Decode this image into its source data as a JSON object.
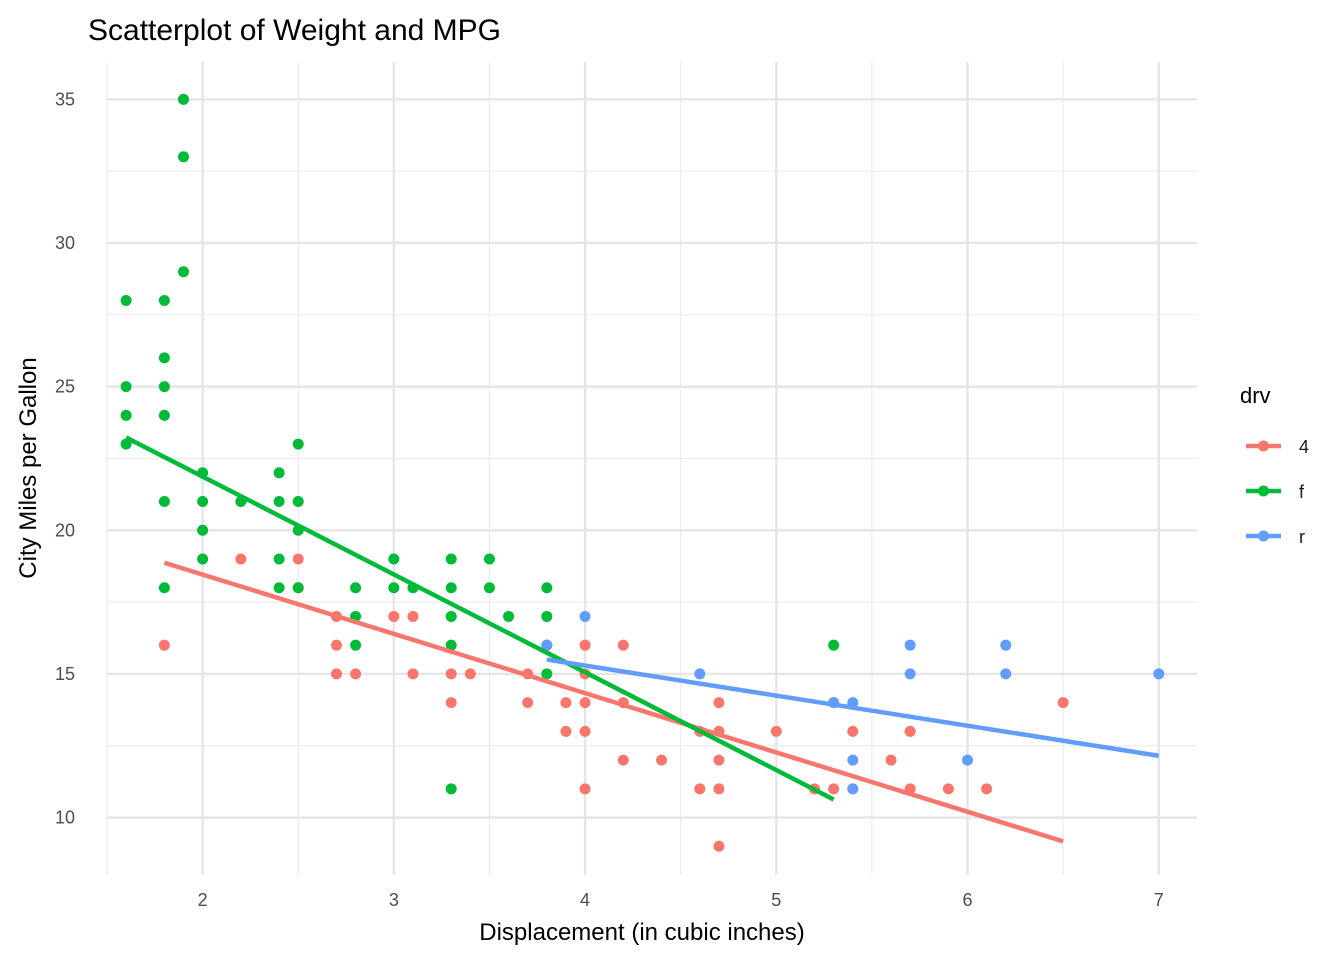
{
  "chart_data": {
    "type": "scatter",
    "title": "Scatterplot of Weight and MPG",
    "xlabel": "Displacement (in cubic inches)",
    "ylabel": "City Miles per Gallon",
    "xlim": [
      1.5,
      7.2
    ],
    "ylim": [
      8.0,
      36.3
    ],
    "x_ticks": [
      2,
      3,
      4,
      5,
      6,
      7
    ],
    "x_tick_labels": [
      "2",
      "3",
      "4",
      "5",
      "6",
      "7"
    ],
    "y_ticks": [
      10,
      15,
      20,
      25,
      30,
      35
    ],
    "y_tick_labels": [
      "10",
      "15",
      "20",
      "25",
      "30",
      "35"
    ],
    "grid": true,
    "legend": {
      "title": "drv",
      "placement": "right",
      "entries": [
        "4",
        "f",
        "r"
      ]
    },
    "series": [
      {
        "name": "4",
        "color": "#F8766D",
        "points": [
          [
            1.8,
            16
          ],
          [
            2.2,
            19
          ],
          [
            2.5,
            19
          ],
          [
            2.5,
            18
          ],
          [
            2.7,
            17
          ],
          [
            2.7,
            16
          ],
          [
            2.7,
            15
          ],
          [
            2.8,
            15
          ],
          [
            3.0,
            17
          ],
          [
            3.1,
            17
          ],
          [
            3.1,
            15
          ],
          [
            3.3,
            15
          ],
          [
            3.3,
            14
          ],
          [
            3.4,
            15
          ],
          [
            3.7,
            15
          ],
          [
            3.7,
            14
          ],
          [
            3.9,
            14
          ],
          [
            3.9,
            13
          ],
          [
            4.0,
            16
          ],
          [
            4.0,
            15
          ],
          [
            4.0,
            14
          ],
          [
            4.0,
            13
          ],
          [
            4.0,
            11
          ],
          [
            4.2,
            16
          ],
          [
            4.2,
            14
          ],
          [
            4.2,
            12
          ],
          [
            4.4,
            12
          ],
          [
            4.6,
            13
          ],
          [
            4.6,
            11
          ],
          [
            4.7,
            14
          ],
          [
            4.7,
            13
          ],
          [
            4.7,
            12
          ],
          [
            4.7,
            11
          ],
          [
            4.7,
            9
          ],
          [
            5.0,
            13
          ],
          [
            5.2,
            11
          ],
          [
            5.3,
            14
          ],
          [
            5.3,
            11
          ],
          [
            5.4,
            13
          ],
          [
            5.4,
            11
          ],
          [
            5.6,
            12
          ],
          [
            5.7,
            13
          ],
          [
            5.7,
            11
          ],
          [
            5.9,
            11
          ],
          [
            6.1,
            11
          ],
          [
            6.5,
            14
          ]
        ],
        "trend": [
          [
            1.8,
            18.87
          ],
          [
            6.5,
            9.17
          ]
        ]
      },
      {
        "name": "f",
        "color": "#00BA38",
        "points": [
          [
            1.6,
            28
          ],
          [
            1.6,
            25
          ],
          [
            1.6,
            24
          ],
          [
            1.6,
            23
          ],
          [
            1.8,
            28
          ],
          [
            1.8,
            26
          ],
          [
            1.8,
            25
          ],
          [
            1.8,
            24
          ],
          [
            1.8,
            21
          ],
          [
            1.8,
            18
          ],
          [
            1.9,
            35
          ],
          [
            1.9,
            33
          ],
          [
            1.9,
            29
          ],
          [
            2.0,
            22
          ],
          [
            2.0,
            21
          ],
          [
            2.0,
            20
          ],
          [
            2.0,
            19
          ],
          [
            2.2,
            21
          ],
          [
            2.4,
            22
          ],
          [
            2.4,
            21
          ],
          [
            2.4,
            19
          ],
          [
            2.4,
            18
          ],
          [
            2.5,
            23
          ],
          [
            2.5,
            21
          ],
          [
            2.5,
            20
          ],
          [
            2.5,
            18
          ],
          [
            2.8,
            18
          ],
          [
            2.8,
            17
          ],
          [
            2.8,
            16
          ],
          [
            3.0,
            19
          ],
          [
            3.0,
            18
          ],
          [
            3.1,
            18
          ],
          [
            3.3,
            19
          ],
          [
            3.3,
            18
          ],
          [
            3.3,
            17
          ],
          [
            3.3,
            16
          ],
          [
            3.3,
            11
          ],
          [
            3.5,
            19
          ],
          [
            3.5,
            18
          ],
          [
            3.6,
            17
          ],
          [
            3.8,
            18
          ],
          [
            3.8,
            17
          ],
          [
            3.8,
            16
          ],
          [
            3.8,
            15
          ],
          [
            5.3,
            16
          ]
        ],
        "trend": [
          [
            1.6,
            23.23
          ],
          [
            5.3,
            10.63
          ]
        ]
      },
      {
        "name": "r",
        "color": "#619CFF",
        "points": [
          [
            3.8,
            16
          ],
          [
            4.0,
            17
          ],
          [
            4.6,
            15
          ],
          [
            5.3,
            14
          ],
          [
            5.4,
            14
          ],
          [
            5.4,
            12
          ],
          [
            5.4,
            11
          ],
          [
            5.7,
            16
          ],
          [
            5.7,
            15
          ],
          [
            6.0,
            12
          ],
          [
            6.2,
            16
          ],
          [
            6.2,
            15
          ],
          [
            7.0,
            15
          ]
        ],
        "trend": [
          [
            3.8,
            15.5
          ],
          [
            7.0,
            12.15
          ]
        ]
      }
    ]
  }
}
